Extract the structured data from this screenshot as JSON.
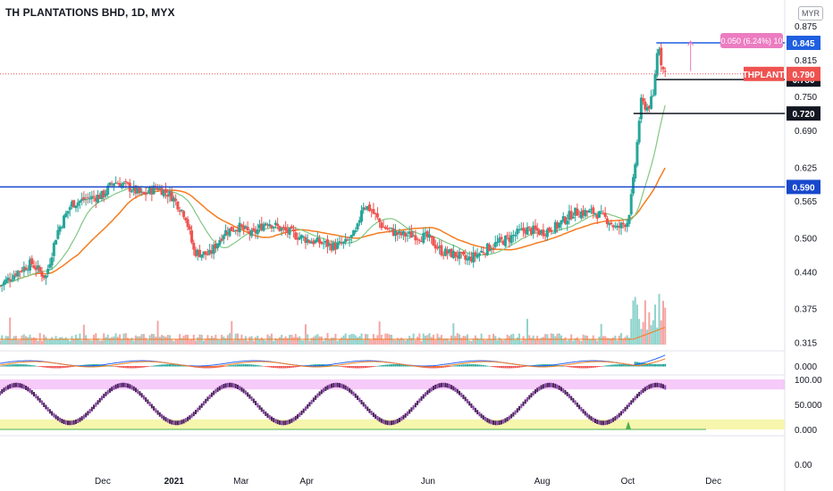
{
  "header": {
    "title": "TH PLANTATIONS BHD, 1D, MYX",
    "currency": "MYR"
  },
  "colors": {
    "up": "#26a69a",
    "down": "#ef5350",
    "blue_line": "#1848cc",
    "black_line": "#131722",
    "orange_ma": "#f57c1f",
    "green_ma": "#81c784",
    "stoch_k": "#6a1b9a",
    "stoch_band": "#f0a6f5",
    "yellow_band": "#f2f28a",
    "price_label": "#ef5350",
    "blue_label": "#1f5fe0"
  },
  "chart_data": {
    "type": "candlestick",
    "title": "TH PLANTATIONS BHD, 1D, MYX",
    "price_axis_ticks": [
      "0.875",
      "0.815",
      "0.750",
      "0.690",
      "0.625",
      "0.565",
      "0.500",
      "0.440",
      "0.375",
      "0.315"
    ],
    "macd_axis_ticks": [
      "0.000"
    ],
    "stoch_axis_ticks": [
      "100.00",
      "50.000",
      "0.000"
    ],
    "bottom_axis_ticks": [
      "0.00"
    ],
    "x_ticks": [
      "Dec",
      "2021",
      "Mar",
      "Apr",
      "Jun",
      "Aug",
      "Oct",
      "Dec"
    ],
    "x_tick_days": [
      0,
      50,
      97,
      143,
      228,
      308,
      368,
      428
    ],
    "x_range_days": [
      -72,
      478
    ],
    "price_range": [
      0.3,
      0.905
    ],
    "horizontal_levels": [
      {
        "value": 0.845,
        "label": "0.845",
        "color": "#1f5fe0",
        "start_day": 388
      },
      {
        "value": 0.78,
        "label": "0.780",
        "color": "#131722",
        "start_day": 388
      },
      {
        "value": 0.72,
        "label": "0.720",
        "color": "#131722",
        "start_day": 372
      },
      {
        "value": 0.59,
        "label": "0.590",
        "color": "#1848cc",
        "start_day": -72
      }
    ],
    "last_price": {
      "value": 0.79,
      "label": "0.790",
      "symbol": "THPLANT"
    },
    "measure_label": "0.050 (6.24%) 10",
    "price_path": [
      [
        -72,
        0.415
      ],
      [
        -60,
        0.44
      ],
      [
        -50,
        0.455
      ],
      [
        -40,
        0.43
      ],
      [
        -32,
        0.51
      ],
      [
        -22,
        0.56
      ],
      [
        -10,
        0.57
      ],
      [
        0,
        0.575
      ],
      [
        8,
        0.6
      ],
      [
        18,
        0.59
      ],
      [
        28,
        0.575
      ],
      [
        38,
        0.59
      ],
      [
        48,
        0.575
      ],
      [
        58,
        0.54
      ],
      [
        64,
        0.475
      ],
      [
        75,
        0.47
      ],
      [
        85,
        0.51
      ],
      [
        95,
        0.52
      ],
      [
        105,
        0.505
      ],
      [
        115,
        0.53
      ],
      [
        125,
        0.515
      ],
      [
        135,
        0.505
      ],
      [
        145,
        0.495
      ],
      [
        155,
        0.49
      ],
      [
        162,
        0.485
      ],
      [
        170,
        0.49
      ],
      [
        178,
        0.51
      ],
      [
        182,
        0.56
      ],
      [
        188,
        0.55
      ],
      [
        196,
        0.52
      ],
      [
        208,
        0.505
      ],
      [
        218,
        0.505
      ],
      [
        228,
        0.5
      ],
      [
        238,
        0.475
      ],
      [
        248,
        0.47
      ],
      [
        255,
        0.46
      ],
      [
        262,
        0.47
      ],
      [
        272,
        0.485
      ],
      [
        285,
        0.5
      ],
      [
        296,
        0.515
      ],
      [
        308,
        0.51
      ],
      [
        318,
        0.52
      ],
      [
        330,
        0.545
      ],
      [
        345,
        0.545
      ],
      [
        355,
        0.53
      ],
      [
        360,
        0.515
      ],
      [
        368,
        0.53
      ],
      [
        371,
        0.58
      ],
      [
        374,
        0.65
      ],
      [
        377,
        0.74
      ],
      [
        382,
        0.73
      ],
      [
        386,
        0.75
      ],
      [
        388,
        0.82
      ],
      [
        390,
        0.84
      ],
      [
        392,
        0.8
      ],
      [
        395,
        0.79
      ]
    ],
    "x_tick_labels_bold": [
      "2021"
    ]
  }
}
